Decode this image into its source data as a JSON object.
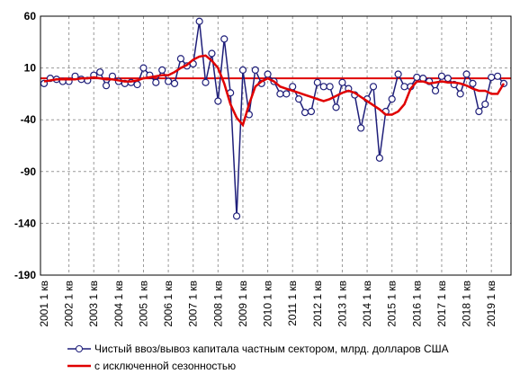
{
  "chart_data": {
    "type": "line",
    "categories": [
      "2001 1 кв",
      null,
      null,
      null,
      "2002 1 кв",
      null,
      null,
      null,
      "2003 1 кв",
      null,
      null,
      null,
      "2004 1 кв",
      null,
      null,
      null,
      "2005 1 кв",
      null,
      null,
      null,
      "2006 1 кв",
      null,
      null,
      null,
      "2007 1 кв",
      null,
      null,
      null,
      "2008 1 кв",
      null,
      null,
      null,
      "2009 1 кв",
      null,
      null,
      null,
      "2010 1 кв",
      null,
      null,
      null,
      "2011 1 кв",
      null,
      null,
      null,
      "2012 1 кв",
      null,
      null,
      null,
      "2013 1 кв",
      null,
      null,
      null,
      "2014 1 кв",
      null,
      null,
      null,
      "2015 1 кв",
      null,
      null,
      null,
      "2016 1 кв",
      null,
      null,
      null,
      "2017 1 кв",
      null,
      null,
      null,
      "2018 1 кв",
      null,
      null,
      null,
      "2019 1 кв",
      null,
      null
    ],
    "series": [
      {
        "name": "Чистый ввоз/вывоз капитала частным сектором, млрд. долларов США",
        "color": "#1f1f7a",
        "marker": true,
        "values": [
          -5,
          0,
          -1,
          -3,
          -3,
          2,
          -1,
          -2,
          3,
          6,
          -7,
          2,
          -3,
          -5,
          -4,
          -6,
          10,
          3,
          -4,
          8,
          -3,
          -5,
          19,
          12,
          14,
          55,
          -4,
          24,
          -22,
          38,
          -14,
          -133,
          8,
          -35,
          8,
          -5,
          4,
          -3,
          -15,
          -15,
          -8,
          -20,
          -33,
          -32,
          -4,
          -8,
          -8,
          -28,
          -4,
          -10,
          -16,
          -48,
          -20,
          -8,
          -77,
          -32,
          -20,
          4,
          -8,
          -8,
          1,
          0,
          -3,
          -12,
          2,
          0,
          -6,
          -15,
          4,
          -5,
          -32,
          -25,
          1,
          2,
          -5
        ]
      },
      {
        "name": "с исключенной сезонностью",
        "color": "#e00000",
        "marker": false,
        "values": [
          -3,
          -2,
          -1,
          -1,
          -1,
          -1,
          0,
          0,
          1,
          0,
          -1,
          -1,
          -2,
          -3,
          -3,
          -2,
          0,
          1,
          2,
          3,
          3,
          6,
          10,
          13,
          18,
          21,
          22,
          17,
          10,
          -5,
          -25,
          -38,
          -45,
          -25,
          -8,
          -3,
          0,
          -3,
          -8,
          -10,
          -12,
          -14,
          -16,
          -18,
          -20,
          -22,
          -20,
          -17,
          -14,
          -12,
          -14,
          -18,
          -22,
          -26,
          -30,
          -35,
          -35,
          -32,
          -25,
          -10,
          -3,
          -3,
          -5,
          -4,
          -3,
          -4,
          -4,
          -5,
          -7,
          -10,
          -12,
          -12,
          -15,
          -15,
          -5
        ]
      }
    ],
    "ylim": [
      -190,
      60
    ],
    "yticks": [
      60,
      10,
      -40,
      -90,
      -140,
      -190
    ],
    "grid": true
  }
}
